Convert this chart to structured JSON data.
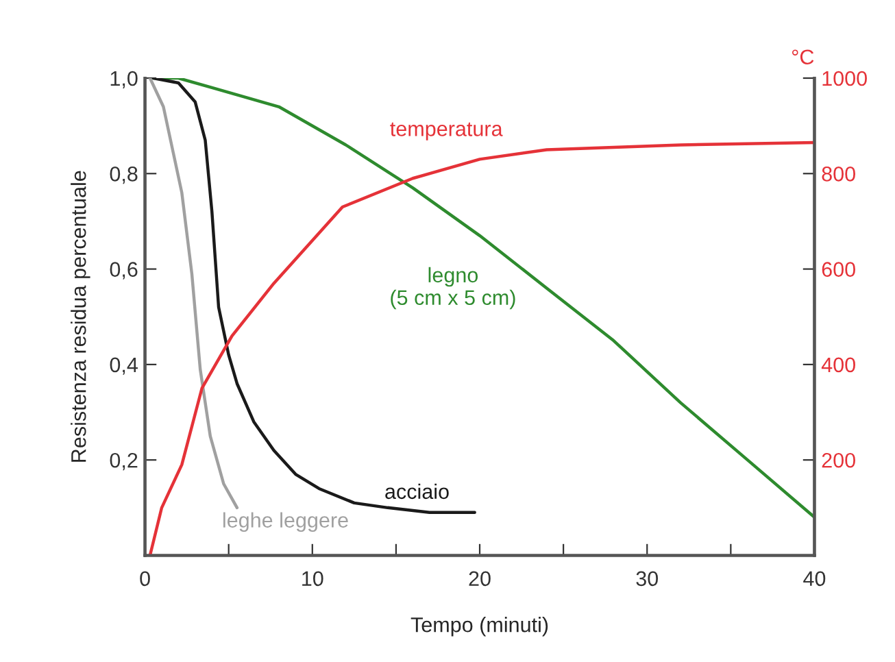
{
  "chart_data": {
    "type": "line",
    "xlabel": "Tempo (minuti)",
    "ylabel": "Resistenza residua percentuale",
    "y2label": "°C",
    "xlim": [
      0,
      40
    ],
    "xticks": [
      0,
      {
        "value": 5,
        "label": null
      },
      10,
      {
        "value": 15,
        "label": null
      },
      20,
      {
        "value": 25,
        "label": null
      },
      30,
      {
        "value": 35,
        "label": null
      },
      40
    ],
    "ylim": [
      0,
      1.0
    ],
    "yticks": [
      {
        "value": 0.2,
        "label": "0,2"
      },
      {
        "value": 0.4,
        "label": "0,4"
      },
      {
        "value": 0.6,
        "label": "0,6"
      },
      {
        "value": 0.8,
        "label": "0,8"
      },
      {
        "value": 1.0,
        "label": "1,0"
      }
    ],
    "y2lim": [
      0,
      1000
    ],
    "y2ticks": [
      200,
      400,
      600,
      800,
      1000
    ],
    "grid": false,
    "legend": false,
    "marker": "none",
    "line_style": "solid",
    "series": [
      {
        "name": "temperatura",
        "color": "#e53238",
        "axis": "y2",
        "x": [
          0.3,
          1,
          2.2,
          3.4,
          5.2,
          7.7,
          11.8,
          16,
          20,
          24,
          32,
          40
        ],
        "values": [
          0,
          100,
          190,
          350,
          460,
          570,
          730,
          790,
          830,
          850,
          860,
          865
        ]
      },
      {
        "name": "legno\n(5 cm x 5 cm)",
        "color": "#2e8b2e",
        "x": [
          0.5,
          2,
          4,
          8,
          12,
          16,
          20,
          24,
          28,
          32,
          36,
          40
        ],
        "values": [
          1.0,
          1.0,
          0.98,
          0.94,
          0.86,
          0.77,
          0.67,
          0.56,
          0.45,
          0.32,
          0.2,
          0.08
        ]
      },
      {
        "name": "acciaio",
        "color": "#1a1a1a",
        "x": [
          0.5,
          2,
          3,
          3.6,
          4.0,
          4.4,
          5,
          5.5,
          6.5,
          7.7,
          9,
          10.4,
          12.5,
          14.5,
          17,
          19.7
        ],
        "values": [
          1.0,
          0.99,
          0.95,
          0.87,
          0.72,
          0.52,
          0.42,
          0.36,
          0.28,
          0.22,
          0.17,
          0.14,
          0.11,
          0.1,
          0.09,
          0.09
        ]
      },
      {
        "name": "leghe leggere",
        "color": "#a0a0a0",
        "x": [
          0.3,
          1.1,
          2.2,
          2.8,
          3.3,
          3.9,
          4.7,
          5.5
        ],
        "values": [
          1.0,
          0.94,
          0.76,
          0.59,
          0.39,
          0.25,
          0.15,
          0.1
        ]
      }
    ]
  }
}
